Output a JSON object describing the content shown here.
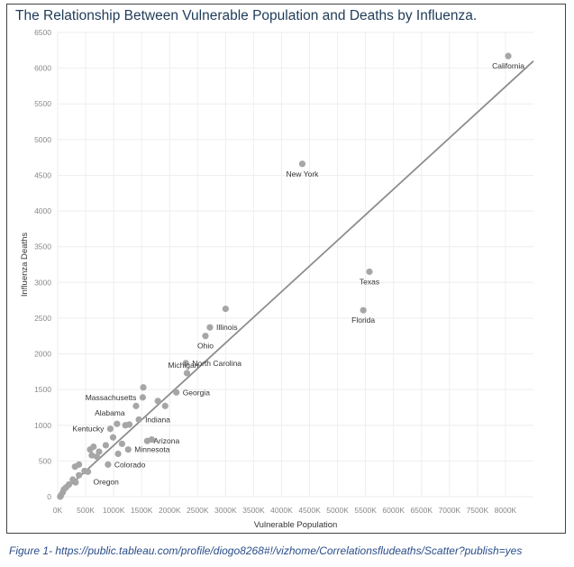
{
  "caption": "Figure 1- https://public.tableau.com/profile/diogo8268#!/vizhome/Correlationsfludeaths/Scatter?publish=yes",
  "chart_data": {
    "type": "scatter",
    "title": "The Relationship Between Vulnerable Population and Deaths by Influenza.",
    "xlabel": "Vulnerable Population",
    "ylabel": "Influenza Deaths",
    "xlim": [
      0,
      8500000
    ],
    "ylim": [
      0,
      6500
    ],
    "x_ticks": [
      0,
      500000,
      1000000,
      1500000,
      2000000,
      2500000,
      3000000,
      3500000,
      4000000,
      4500000,
      5000000,
      5500000,
      6000000,
      6500000,
      7000000,
      7500000,
      8000000
    ],
    "x_tick_labels": [
      "0K",
      "500K",
      "1000K",
      "1500K",
      "2000K",
      "2500K",
      "3000K",
      "3500K",
      "4000K",
      "4500K",
      "5000K",
      "5500K",
      "6000K",
      "6500K",
      "7000K",
      "7500K",
      "8000K"
    ],
    "y_ticks": [
      0,
      500,
      1000,
      1500,
      2000,
      2500,
      3000,
      3500,
      4000,
      4500,
      5000,
      5500,
      6000,
      6500
    ],
    "y_tick_labels": [
      "0",
      "500",
      "1000",
      "1500",
      "2000",
      "2500",
      "3000",
      "3500",
      "4000",
      "4500",
      "5000",
      "5500",
      "6000",
      "6500"
    ],
    "grid": true,
    "colors": {
      "point": "#a6a6a6",
      "trend": "#8c8c8c",
      "grid": "#eeeeee",
      "title": "#1f3b57"
    },
    "trendline": {
      "x": [
        0,
        8500000
      ],
      "y": [
        0,
        6100
      ]
    },
    "points": [
      {
        "x": 8050000,
        "y": 6170,
        "label": "California",
        "label_pos": "below"
      },
      {
        "x": 4370000,
        "y": 4660,
        "label": "New York",
        "label_pos": "below"
      },
      {
        "x": 5570000,
        "y": 3150,
        "label": "Texas",
        "label_pos": "below"
      },
      {
        "x": 5460000,
        "y": 2610,
        "label": "Florida",
        "label_pos": "below"
      },
      {
        "x": 3000000,
        "y": 2630,
        "label": ""
      },
      {
        "x": 2720000,
        "y": 2370,
        "label": "Illinois",
        "label_pos": "right"
      },
      {
        "x": 2640000,
        "y": 2250,
        "label": "Ohio",
        "label_pos": "below"
      },
      {
        "x": 2290000,
        "y": 1870,
        "label": "North Carolina",
        "label_pos": "right"
      },
      {
        "x": 2310000,
        "y": 1730,
        "label": "Michigan",
        "label_pos": "below-left"
      },
      {
        "x": 2120000,
        "y": 1460,
        "label": "Georgia",
        "label_pos": "right"
      },
      {
        "x": 1530000,
        "y": 1530,
        "label": ""
      },
      {
        "x": 1520000,
        "y": 1390,
        "label": "Massachusetts",
        "label_pos": "left"
      },
      {
        "x": 1790000,
        "y": 1340,
        "label": ""
      },
      {
        "x": 1920000,
        "y": 1270,
        "label": ""
      },
      {
        "x": 1400000,
        "y": 1270,
        "label": ""
      },
      {
        "x": 1450000,
        "y": 1080,
        "label": "Indiana",
        "label_pos": "right"
      },
      {
        "x": 1210000,
        "y": 1000,
        "label": ""
      },
      {
        "x": 1060000,
        "y": 1020,
        "label": "Alabama",
        "label_pos": "above-left"
      },
      {
        "x": 940000,
        "y": 950,
        "label": "Kentucky",
        "label_pos": "left"
      },
      {
        "x": 1280000,
        "y": 1010,
        "label": ""
      },
      {
        "x": 990000,
        "y": 830,
        "label": ""
      },
      {
        "x": 1600000,
        "y": 780,
        "label": "Arizona",
        "label_pos": "right"
      },
      {
        "x": 1680000,
        "y": 800,
        "label": ""
      },
      {
        "x": 1150000,
        "y": 740,
        "label": ""
      },
      {
        "x": 1260000,
        "y": 660,
        "label": "Minnesota",
        "label_pos": "right"
      },
      {
        "x": 1080000,
        "y": 600,
        "label": ""
      },
      {
        "x": 860000,
        "y": 720,
        "label": ""
      },
      {
        "x": 640000,
        "y": 700,
        "label": ""
      },
      {
        "x": 580000,
        "y": 660,
        "label": ""
      },
      {
        "x": 740000,
        "y": 630,
        "label": ""
      },
      {
        "x": 610000,
        "y": 580,
        "label": ""
      },
      {
        "x": 700000,
        "y": 560,
        "label": ""
      },
      {
        "x": 900000,
        "y": 450,
        "label": "Colorado",
        "label_pos": "right"
      },
      {
        "x": 380000,
        "y": 450,
        "label": ""
      },
      {
        "x": 310000,
        "y": 420,
        "label": ""
      },
      {
        "x": 480000,
        "y": 360,
        "label": ""
      },
      {
        "x": 540000,
        "y": 350,
        "label": "Oregon",
        "label_pos": "below-right"
      },
      {
        "x": 380000,
        "y": 300,
        "label": ""
      },
      {
        "x": 270000,
        "y": 240,
        "label": ""
      },
      {
        "x": 320000,
        "y": 200,
        "label": ""
      },
      {
        "x": 200000,
        "y": 170,
        "label": ""
      },
      {
        "x": 150000,
        "y": 130,
        "label": ""
      },
      {
        "x": 110000,
        "y": 100,
        "label": ""
      },
      {
        "x": 90000,
        "y": 60,
        "label": ""
      },
      {
        "x": 60000,
        "y": 20,
        "label": ""
      },
      {
        "x": 45000,
        "y": 0,
        "label": ""
      }
    ]
  }
}
